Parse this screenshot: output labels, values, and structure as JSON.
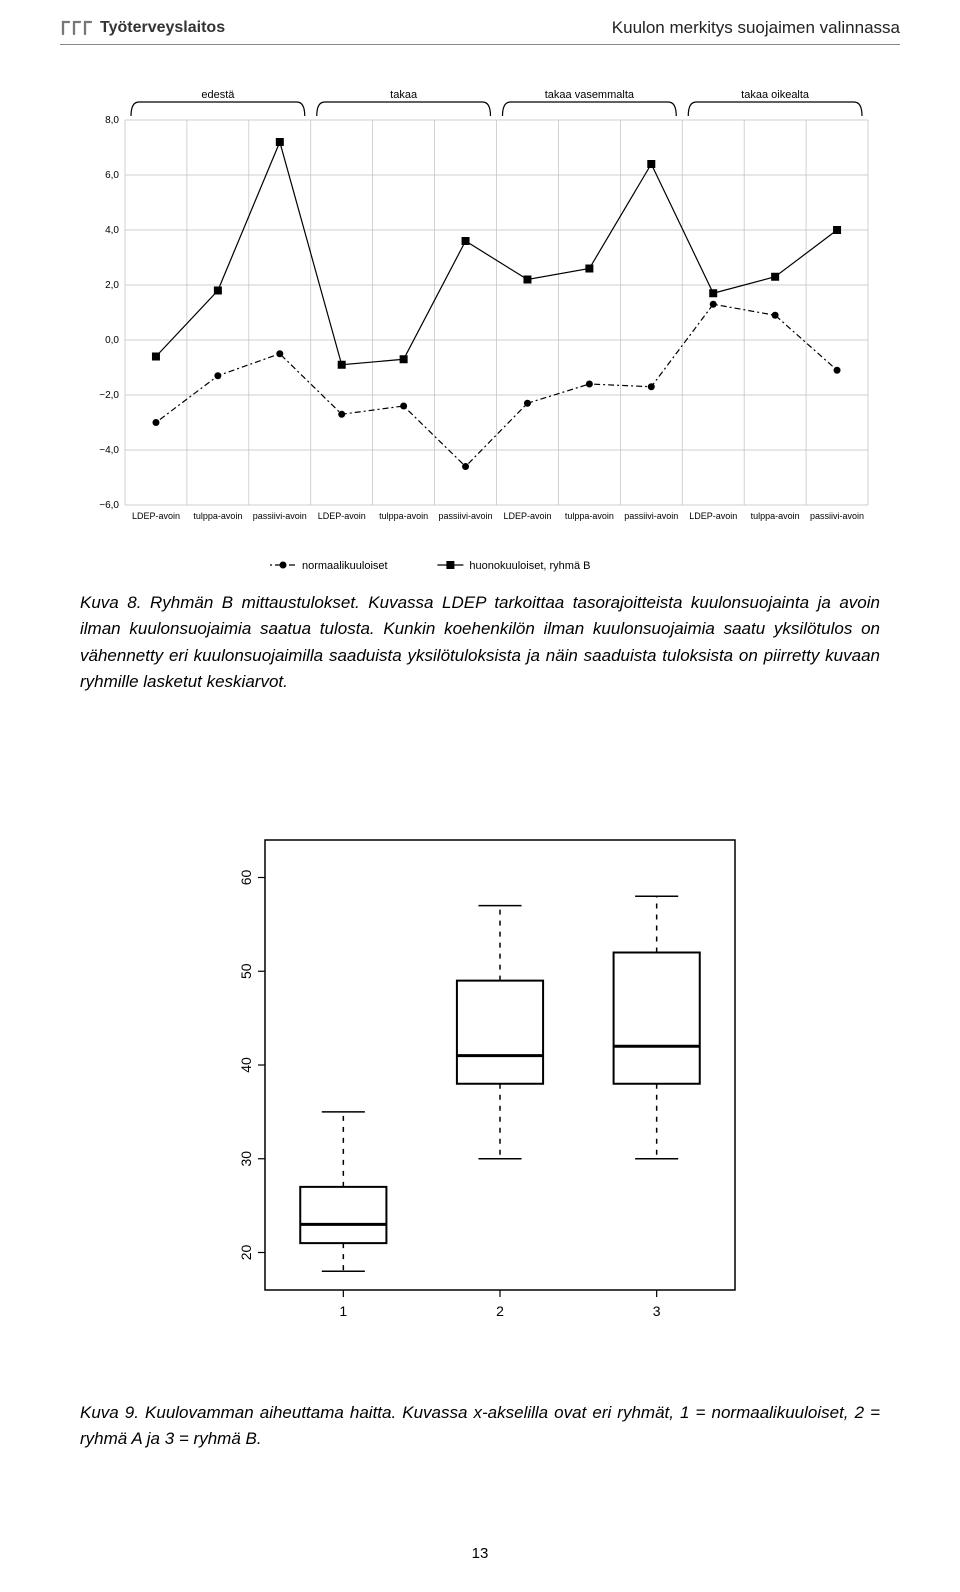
{
  "header": {
    "brand": "Työterveyslaitos",
    "page_title": "Kuulon merkitys suojaimen valinnassa"
  },
  "chart1": {
    "type": "line",
    "x_labels": [
      "LDEP-avoin",
      "tulppa-avoin",
      "passiivi-avoin",
      "LDEP-avoin",
      "tulppa-avoin",
      "passiivi-avoin",
      "LDEP-avoin",
      "tulppa-avoin",
      "passiivi-avoin",
      "LDEP-avoin",
      "tulppa-avoin",
      "passiivi-avoin"
    ],
    "groups": [
      {
        "label": "edestä",
        "span": [
          0,
          2
        ]
      },
      {
        "label": "takaa",
        "span": [
          3,
          5
        ]
      },
      {
        "label": "takaa vasemmalta",
        "span": [
          6,
          8
        ]
      },
      {
        "label": "takaa oikealta",
        "span": [
          9,
          11
        ]
      }
    ],
    "y_ticks": [
      -6,
      -4,
      -2,
      0,
      2,
      4,
      6,
      8
    ],
    "ylim": [
      -6,
      8
    ],
    "series": [
      {
        "name": "normaalikuuloiset",
        "marker": "circle",
        "dash": true,
        "values": [
          -3.0,
          -1.3,
          -0.5,
          -2.7,
          -2.4,
          -4.6,
          -2.3,
          -1.6,
          -1.7,
          1.3,
          0.9,
          -1.1
        ]
      },
      {
        "name": "huonokuuloiset, ryhmä B",
        "marker": "square",
        "dash": false,
        "values": [
          -0.6,
          1.8,
          7.2,
          -0.9,
          -0.7,
          3.6,
          2.2,
          2.6,
          6.4,
          1.7,
          2.3,
          4.0
        ]
      }
    ],
    "grid_color": "#bfbfbf",
    "line_color": "#000000",
    "title_fontsize": 11
  },
  "caption1_parts": {
    "a": "Kuva 8. Ryhmän B mittaustulokset. Kuvassa LDEP tarkoittaa tasorajoitteista kuulon­suojainta ja avoin ilman kuulonsuojaimia saatua tulosta. Kunkin koehenkilön ilman kuu­lonsuojaimia saatu yksilötulos on vähennetty eri kuulonsuojaimilla saaduista yksilötulok­sista ja näin saaduista tuloksista on piirretty kuvaan ryhmille lasketut keskiarvot."
  },
  "chart2": {
    "type": "boxplot",
    "x_labels": [
      "1",
      "2",
      "3"
    ],
    "y_ticks": [
      20,
      30,
      40,
      50,
      60
    ],
    "ylim": [
      16,
      64
    ],
    "boxes": [
      {
        "low": 18,
        "q1": 21,
        "median": 23,
        "q3": 27,
        "high": 35
      },
      {
        "low": 30,
        "q1": 38,
        "median": 41,
        "q3": 49,
        "high": 57
      },
      {
        "low": 30,
        "q1": 38,
        "median": 42,
        "q3": 52,
        "high": 58
      }
    ],
    "box_color": "#000000",
    "background": "#ffffff"
  },
  "caption2_parts": {
    "a": "Kuva 9. Kuulovamman aiheuttama haitta. Kuvassa x-akselilla ovat eri ryhmät, 1 = nor­maalikuuloiset, 2 = ryhmä A ja 3 = ryhmä B."
  },
  "page_number": "13"
}
